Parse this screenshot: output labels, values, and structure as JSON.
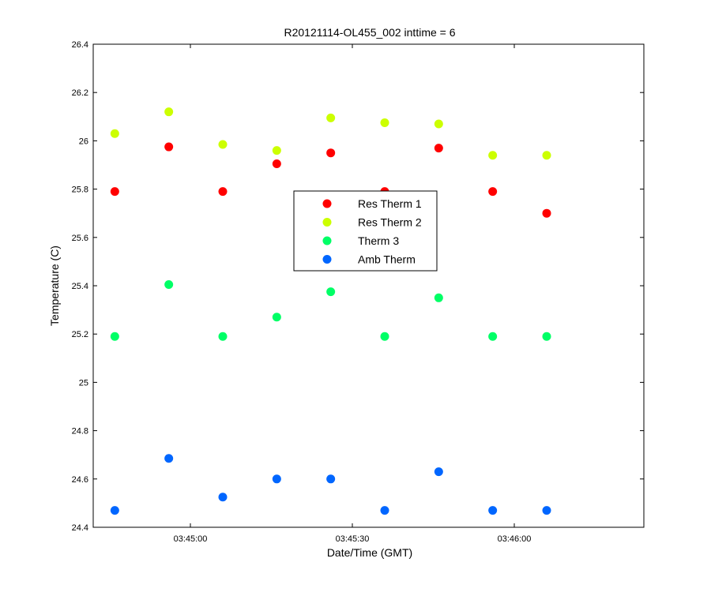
{
  "chart_data": {
    "type": "scatter",
    "title": "R20121114-OL455_002 inttime = 6",
    "xlabel": "Date/Time (GMT)",
    "ylabel": "Temperature (C)",
    "x_ticks": [
      "03:45:00",
      "03:45:30",
      "03:46:00"
    ],
    "y_ticks": [
      "24.4",
      "24.6",
      "24.8",
      "25",
      "25.2",
      "25.4",
      "25.6",
      "25.8",
      "26",
      "26.2",
      "26.4"
    ],
    "ylim": [
      24.4,
      26.4
    ],
    "xlim": [
      "03:44:42",
      "03:46:24"
    ],
    "grid": false,
    "legend_position": "center",
    "x": [
      "03:44:46",
      "03:44:56",
      "03:45:06",
      "03:45:16",
      "03:45:26",
      "03:45:36",
      "03:45:46",
      "03:45:56",
      "03:46:06"
    ],
    "series": [
      {
        "name": "Res Therm 1",
        "color": "#ff0000",
        "values": [
          25.79,
          25.975,
          25.79,
          25.905,
          25.95,
          25.79,
          25.97,
          25.79,
          25.7
        ]
      },
      {
        "name": "Res Therm 2",
        "color": "#ccff00",
        "values": [
          26.03,
          26.12,
          25.985,
          25.96,
          26.095,
          26.075,
          26.07,
          25.94,
          25.94
        ]
      },
      {
        "name": "Therm 3",
        "color": "#00ff66",
        "values": [
          25.19,
          25.405,
          25.19,
          25.27,
          25.375,
          25.19,
          25.35,
          25.19,
          25.19
        ]
      },
      {
        "name": "Amb Therm",
        "color": "#0066ff",
        "values": [
          24.47,
          24.685,
          24.525,
          24.6,
          24.6,
          24.47,
          24.63,
          24.47,
          24.47
        ]
      }
    ]
  }
}
